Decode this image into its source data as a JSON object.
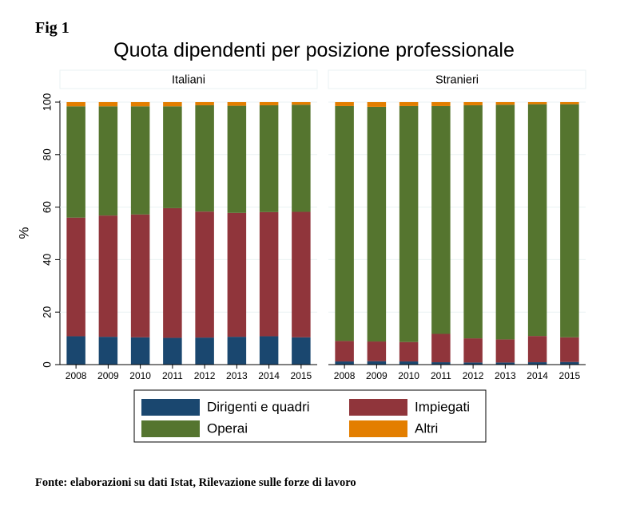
{
  "fig_label": "Fig 1",
  "source_note": "Fonte: elaborazioni su dati Istat, Rilevazione sulle forze di lavoro",
  "colors": {
    "dirigenti": "#1a476f",
    "impiegati": "#90353b",
    "operai": "#55752f",
    "altri": "#e37e00",
    "grid": "#eaf2f3",
    "panel_header_bg": "#ffffff",
    "panel_header_border": "#eaf2f3"
  },
  "chart_data": {
    "type": "bar",
    "stacked": true,
    "title": "Quota dipendenti per posizione professionale",
    "ylabel": "%",
    "xlabel": "",
    "ylim": [
      0,
      100
    ],
    "yticks": [
      0,
      20,
      40,
      60,
      80,
      100
    ],
    "grid": true,
    "legend_position": "bottom",
    "categories": [
      "2008",
      "2009",
      "2010",
      "2011",
      "2012",
      "2013",
      "2014",
      "2015"
    ],
    "legend": [
      "Dirigenti e quadri",
      "Impiegati",
      "Operai",
      "Altri"
    ],
    "panels": [
      {
        "name": "Italiani",
        "series": [
          {
            "name": "Dirigenti e quadri",
            "color_key": "dirigenti",
            "values": [
              10.8,
              10.6,
              10.4,
              10.2,
              10.3,
              10.6,
              10.8,
              10.4
            ]
          },
          {
            "name": "Impiegati",
            "color_key": "impiegati",
            "values": [
              45.2,
              46.2,
              46.8,
              49.4,
              48.0,
              47.2,
              47.3,
              47.8
            ]
          },
          {
            "name": "Operai",
            "color_key": "operai",
            "values": [
              42.4,
              41.6,
              41.2,
              38.8,
              40.5,
              40.8,
              40.7,
              40.8
            ]
          },
          {
            "name": "Altri",
            "color_key": "altri",
            "values": [
              1.6,
              1.6,
              1.6,
              1.6,
              1.2,
              1.4,
              1.2,
              1.0
            ]
          }
        ]
      },
      {
        "name": "Stranieri",
        "series": [
          {
            "name": "Dirigenti e quadri",
            "color_key": "dirigenti",
            "values": [
              1.2,
              1.3,
              1.2,
              0.9,
              0.8,
              0.8,
              0.9,
              1.0
            ]
          },
          {
            "name": "Impiegati",
            "color_key": "impiegati",
            "values": [
              7.8,
              7.5,
              7.4,
              10.8,
              9.2,
              8.8,
              10.0,
              9.4
            ]
          },
          {
            "name": "Operai",
            "color_key": "operai",
            "values": [
              89.5,
              89.4,
              89.9,
              86.8,
              88.8,
              89.4,
              88.3,
              88.8
            ]
          },
          {
            "name": "Altri",
            "color_key": "altri",
            "values": [
              1.5,
              1.8,
              1.5,
              1.5,
              1.2,
              1.0,
              0.8,
              0.8
            ]
          }
        ]
      }
    ]
  }
}
